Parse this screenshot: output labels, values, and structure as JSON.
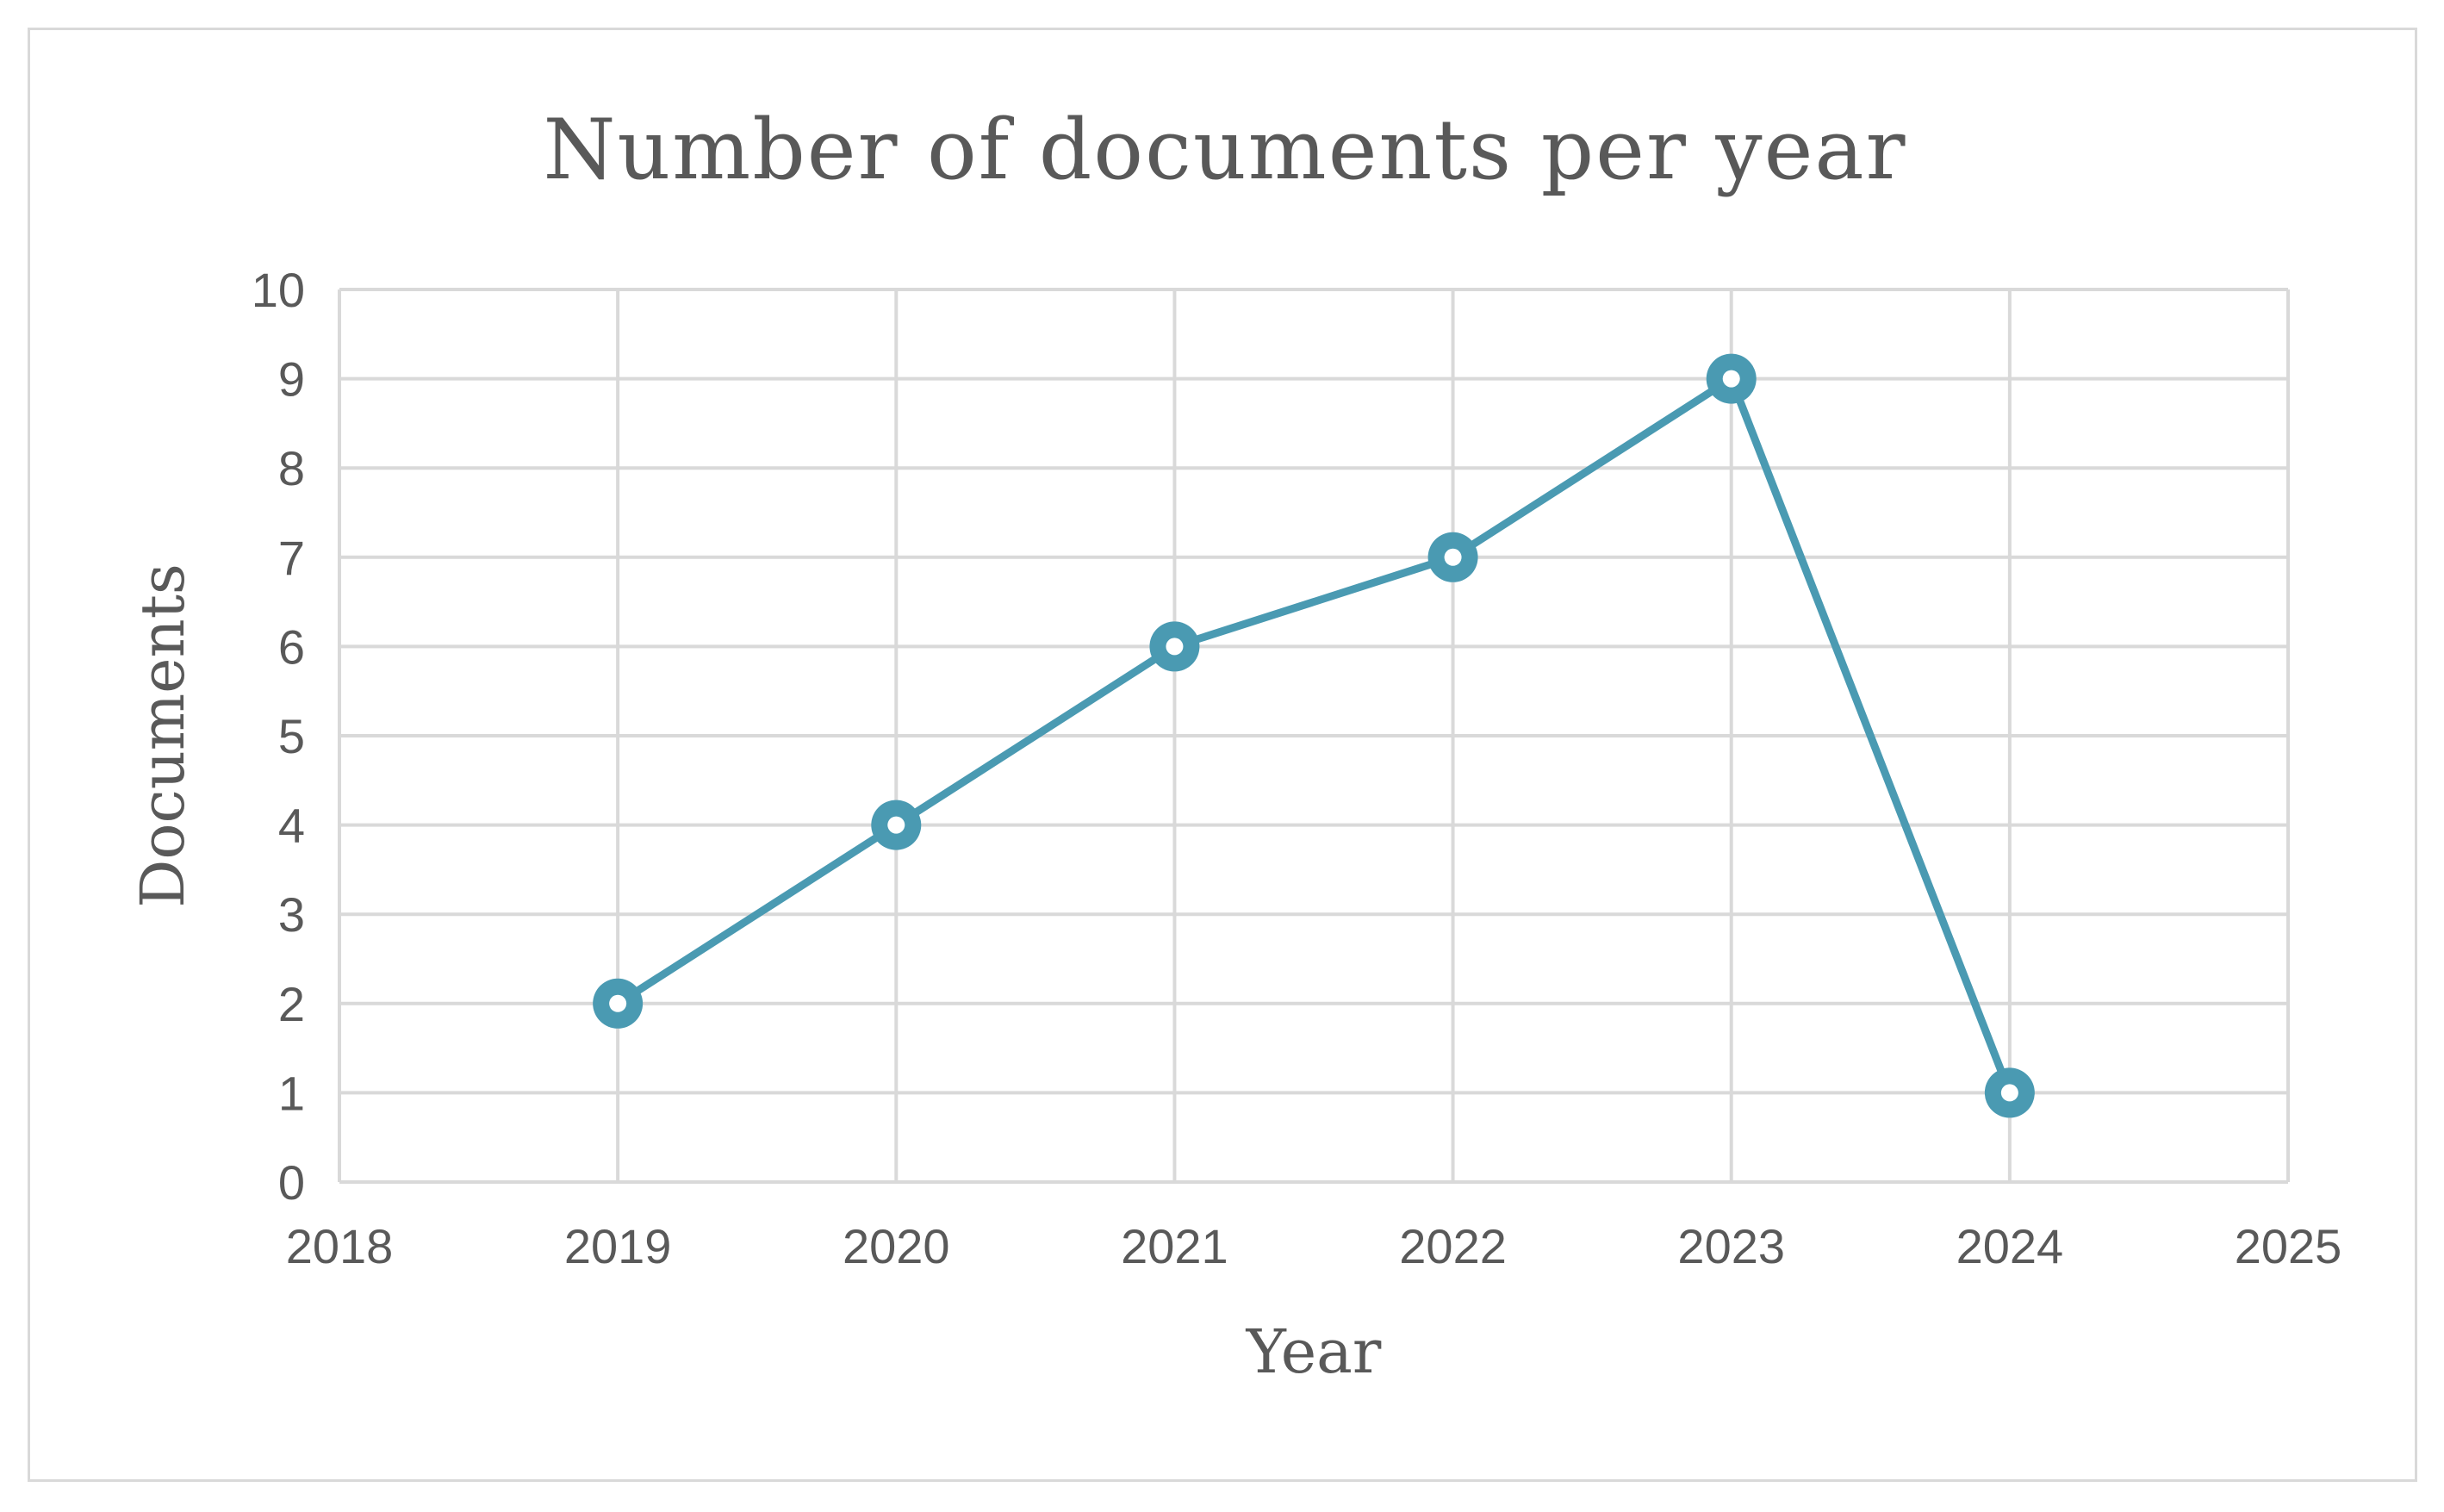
{
  "chart_data": {
    "type": "scatter",
    "title": "Number of documents per year",
    "xlabel": "Year",
    "ylabel": "Documents",
    "xlim": [
      2018,
      2025
    ],
    "ylim": [
      0,
      10
    ],
    "x_ticks": [
      2018,
      2019,
      2020,
      2021,
      2022,
      2023,
      2024,
      2025
    ],
    "y_ticks": [
      0,
      1,
      2,
      3,
      4,
      5,
      6,
      7,
      8,
      9,
      10
    ],
    "grid": true,
    "legend": "none",
    "series": [
      {
        "style": "line-with-markers",
        "color": "#4a9ab2",
        "x": [
          2019,
          2020,
          2021,
          2022,
          2023,
          2024
        ],
        "y": [
          2,
          4,
          6,
          7,
          9,
          1
        ]
      }
    ]
  }
}
